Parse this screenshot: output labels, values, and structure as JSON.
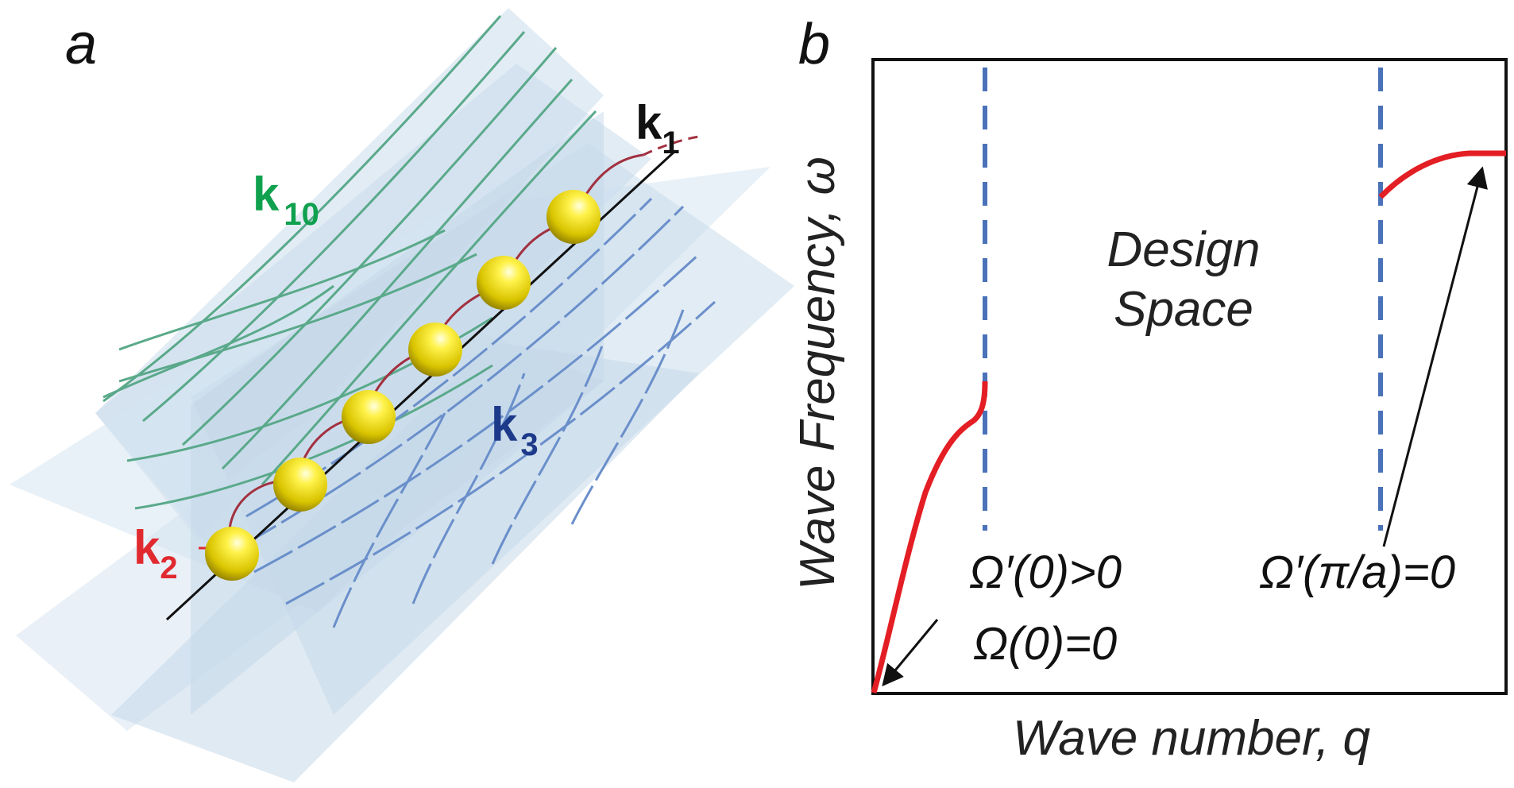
{
  "panel_a": {
    "label": "a",
    "k1": {
      "main": "k",
      "sub": "1",
      "color": "#111111"
    },
    "k2": {
      "main": "k",
      "sub": "2",
      "color": "#e02a30"
    },
    "k3": {
      "main": "k",
      "sub": "3",
      "color": "#1d3a8a"
    },
    "k10": {
      "main": "k",
      "sub": "10",
      "color": "#0fa14e"
    },
    "colors": {
      "plane": "#a9c7e0",
      "green_curve": "#5aa98a",
      "red_curve": "#a23040",
      "blue_curve": "#6a8fca",
      "sphere": "#e8d400",
      "axis": "#111111"
    },
    "sphere_count": 6
  },
  "panel_b": {
    "label": "b",
    "xlabel": "Wave number, q",
    "ylabel": "Wave Frequency, ω",
    "center_text": [
      "Design",
      "Space"
    ],
    "annotation_left": [
      "Ω′(0)>0",
      "Ω(0)=0"
    ],
    "annotation_right": "Ω′(π/a)=0",
    "colors": {
      "curve": "#e31e24",
      "dashed": "#4a72b8",
      "frame": "#111111"
    }
  }
}
